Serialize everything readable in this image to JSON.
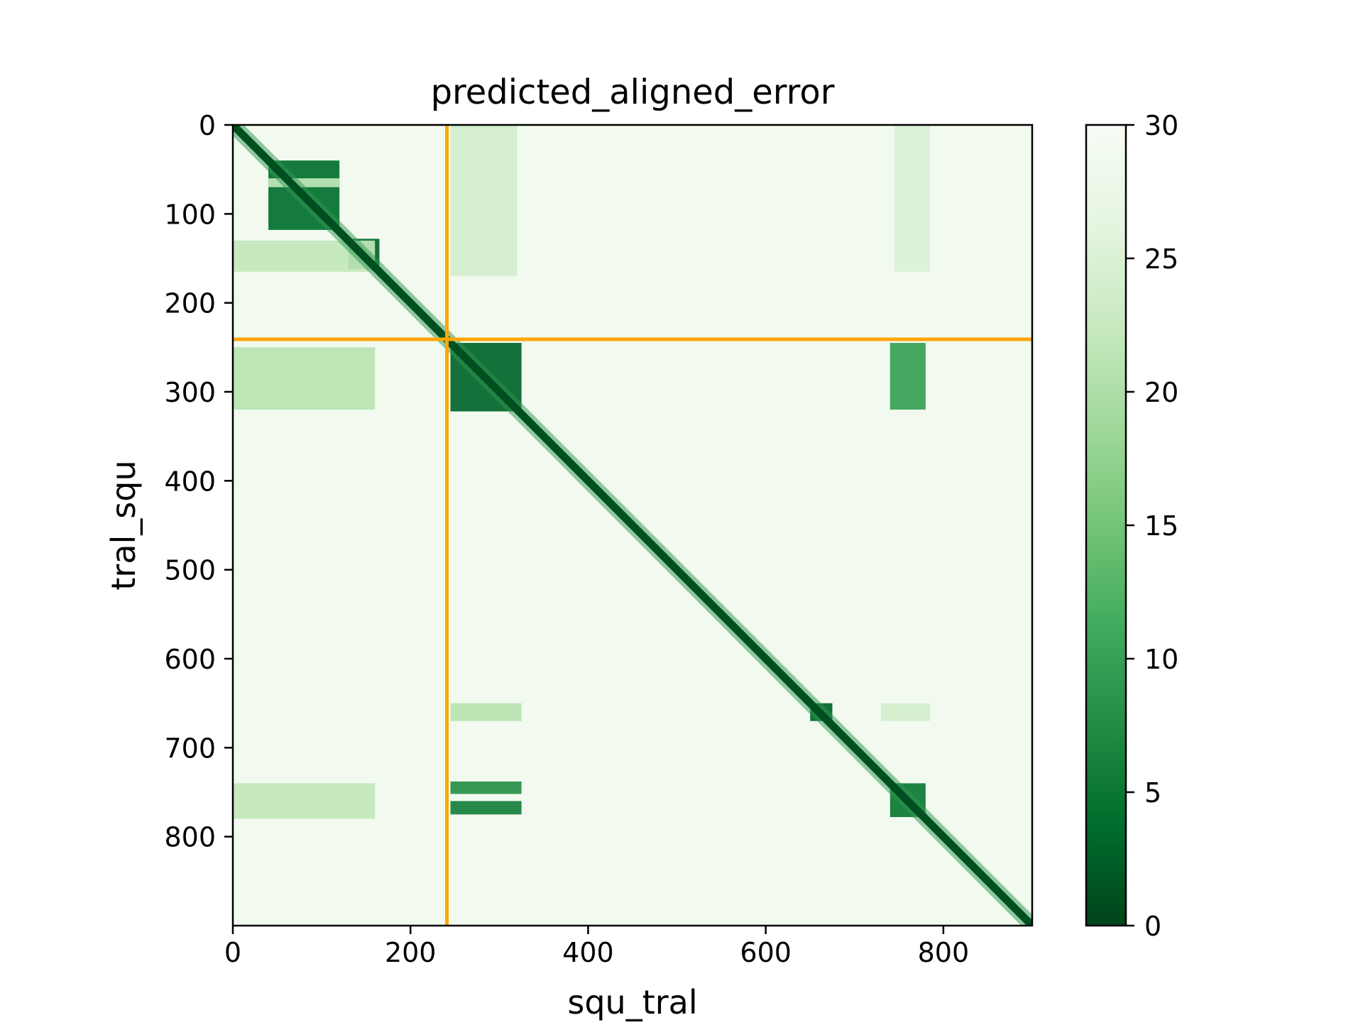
{
  "chart_data": {
    "type": "heatmap",
    "title": "predicted_aligned_error",
    "xlabel": "squ_tral",
    "ylabel": "tral_squ",
    "n_residues": 900,
    "chain_boundary": 241,
    "boundary_color": "#FFA500",
    "colormap": "Greens_r",
    "color_stops": [
      "#00441b",
      "#006d2c",
      "#238b45",
      "#41ab5d",
      "#74c476",
      "#a1d99b",
      "#c7e9c0",
      "#e5f5e0",
      "#f7fcf5"
    ],
    "vmin": 0,
    "vmax": 30,
    "xlim": [
      0,
      900
    ],
    "ylim": [
      900,
      0
    ],
    "x_ticks": [
      0,
      200,
      400,
      600,
      800
    ],
    "y_ticks": [
      0,
      100,
      200,
      300,
      400,
      500,
      600,
      700,
      800
    ],
    "colorbar_ticks": [
      0,
      5,
      10,
      15,
      20,
      25,
      30
    ],
    "background_value": 29,
    "diagonal_value": 1,
    "blocks": [
      {
        "x": [
          40,
          120
        ],
        "y": [
          40,
          118
        ],
        "value": 4
      },
      {
        "x": [
          40,
          120
        ],
        "y": [
          60,
          70
        ],
        "value": 22
      },
      {
        "x": [
          130,
          165
        ],
        "y": [
          128,
          162
        ],
        "value": 3
      },
      {
        "x": [
          245,
          325
        ],
        "y": [
          245,
          322
        ],
        "value": 3
      },
      {
        "x": [
          650,
          675
        ],
        "y": [
          650,
          670
        ],
        "value": 3
      },
      {
        "x": [
          740,
          780
        ],
        "y": [
          740,
          778
        ],
        "value": 5
      },
      {
        "x": [
          245,
          325
        ],
        "y": [
          738,
          752
        ],
        "value": 8
      },
      {
        "x": [
          245,
          325
        ],
        "y": [
          760,
          775
        ],
        "value": 6
      },
      {
        "x": [
          740,
          780
        ],
        "y": [
          245,
          320
        ],
        "value": 10
      },
      {
        "x": [
          0,
          160
        ],
        "y": [
          250,
          320
        ],
        "value": 21
      },
      {
        "x": [
          245,
          320
        ],
        "y": [
          0,
          170
        ],
        "value": 24
      },
      {
        "x": [
          745,
          785
        ],
        "y": [
          0,
          165
        ],
        "value": 25
      },
      {
        "x": [
          0,
          160
        ],
        "y": [
          740,
          780
        ],
        "value": 22
      },
      {
        "x": [
          245,
          325
        ],
        "y": [
          650,
          670
        ],
        "value": 21
      },
      {
        "x": [
          730,
          785
        ],
        "y": [
          650,
          670
        ],
        "value": 24
      },
      {
        "x": [
          0,
          160
        ],
        "y": [
          130,
          165
        ],
        "value": 22
      }
    ]
  }
}
